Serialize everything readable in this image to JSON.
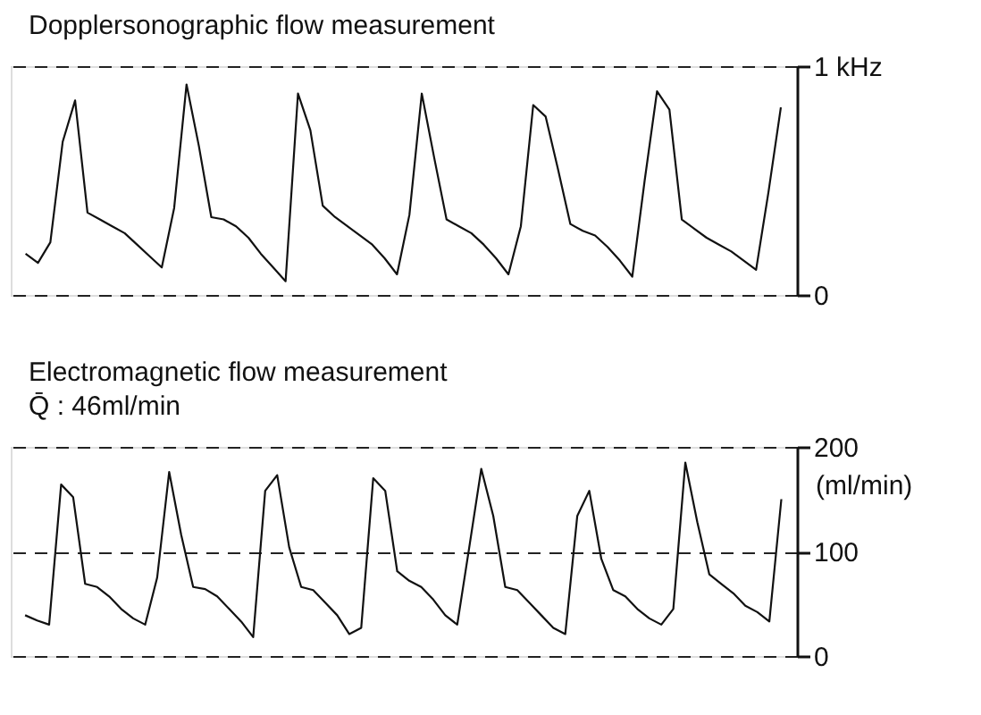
{
  "chart_data": [
    {
      "type": "line",
      "title": "Dopplersonographic flow measurement",
      "categories": [
        null,
        null,
        null,
        null,
        null,
        null,
        null,
        null,
        null,
        null,
        null,
        null,
        null,
        null,
        null,
        null,
        null,
        null,
        null,
        null,
        null,
        null,
        null,
        null,
        null,
        null,
        null,
        null,
        null,
        null,
        null,
        null,
        null,
        null,
        null,
        null,
        null,
        null,
        null,
        null,
        null,
        null,
        null,
        null,
        null,
        null,
        null,
        null,
        null,
        null,
        null,
        null,
        null,
        null,
        null,
        null,
        null,
        null,
        null,
        null,
        null,
        null
      ],
      "series": [
        {
          "color": "#111111",
          "values": [
            0.18,
            0.14,
            0.23,
            0.67,
            0.85,
            0.36,
            0.33,
            0.3,
            0.27,
            0.22,
            0.17,
            0.12,
            0.38,
            0.92,
            0.65,
            0.34,
            0.33,
            0.3,
            0.25,
            0.18,
            0.12,
            0.06,
            0.88,
            0.72,
            0.39,
            0.34,
            0.3,
            0.26,
            0.22,
            0.16,
            0.09,
            0.35,
            0.88,
            0.6,
            0.33,
            0.3,
            0.27,
            0.22,
            0.16,
            0.09,
            0.3,
            0.83,
            0.78,
            0.55,
            0.31,
            0.28,
            0.26,
            0.21,
            0.15,
            0.08,
            0.5,
            0.89,
            0.81,
            0.33,
            0.29,
            0.25,
            0.22,
            0.19,
            0.15,
            0.11,
            0.45,
            0.82
          ]
        }
      ],
      "ylim": [
        0,
        1
      ],
      "yticks": [
        0,
        {
          "value": 1,
          "label": "1 kHz"
        }
      ],
      "grid": "y",
      "tick_labels": "y",
      "line_style": "solid",
      "marker": "none"
    },
    {
      "type": "line",
      "title": "Electromagnetic flow measurement",
      "subtitle": "Q̄ : 46ml/min",
      "ylabel": "(ml/min)",
      "categories": [
        null,
        null,
        null,
        null,
        null,
        null,
        null,
        null,
        null,
        null,
        null,
        null,
        null,
        null,
        null,
        null,
        null,
        null,
        null,
        null,
        null,
        null,
        null,
        null,
        null,
        null,
        null,
        null,
        null,
        null,
        null,
        null,
        null,
        null,
        null,
        null,
        null,
        null,
        null,
        null,
        null,
        null,
        null,
        null,
        null,
        null,
        null,
        null,
        null,
        null,
        null,
        null,
        null,
        null,
        null,
        null,
        null,
        null,
        null,
        null,
        null,
        null,
        null,
        null
      ],
      "series": [
        {
          "color": "#111111",
          "values": [
            39,
            34,
            30,
            164,
            152,
            69,
            66,
            57,
            45,
            36,
            30,
            75,
            176,
            116,
            66,
            64,
            57,
            45,
            33,
            18,
            158,
            173,
            104,
            66,
            63,
            51,
            39,
            21,
            27,
            170,
            158,
            81,
            72,
            66,
            54,
            39,
            30,
            104,
            179,
            134,
            66,
            63,
            51,
            39,
            27,
            21,
            134,
            158,
            93,
            63,
            57,
            45,
            36,
            30,
            45,
            185,
            128,
            78,
            69,
            60,
            48,
            42,
            33,
            150
          ]
        }
      ],
      "ylim": [
        0,
        200
      ],
      "yticks": [
        0,
        100,
        200
      ],
      "grid": "y",
      "tick_labels": "y",
      "line_style": "solid",
      "marker": "none"
    }
  ]
}
